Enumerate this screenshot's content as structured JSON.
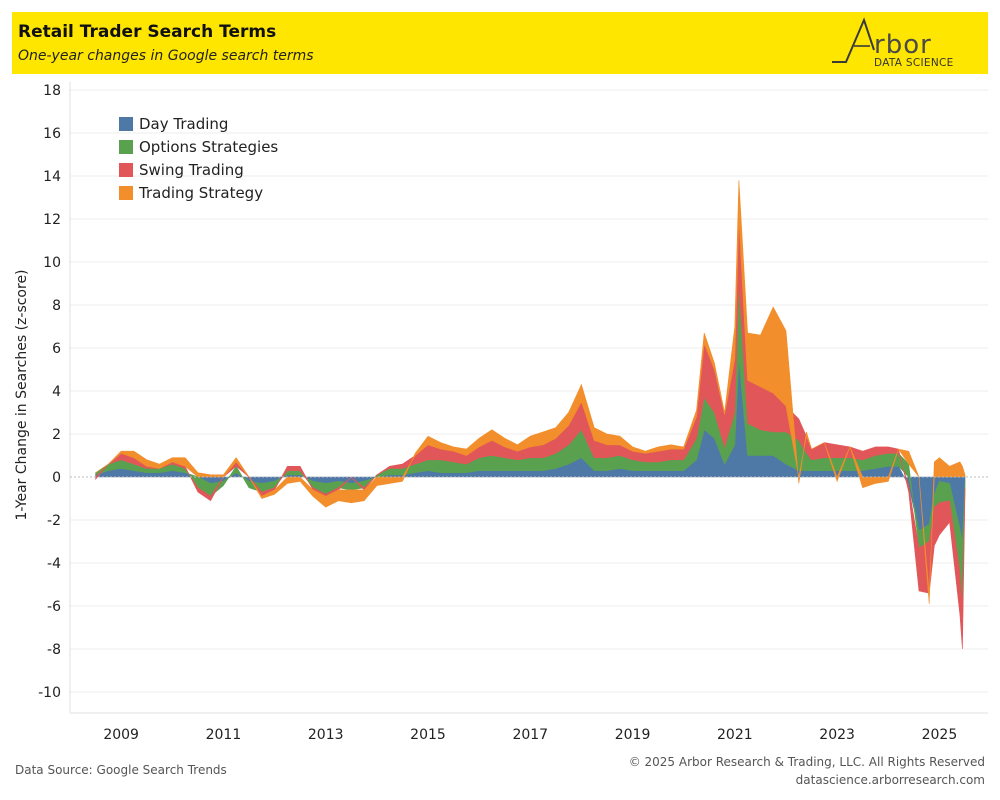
{
  "header": {
    "title": "Retail Trader Search Terms",
    "subtitle": "One-year changes in Google search terms",
    "logo_word": "rbor",
    "logo_sub": "DATA SCIENCE",
    "background_color": "#ffe600"
  },
  "footer": {
    "source": "Data Source: Google Search Trends",
    "copyright": "© 2025 Arbor Research & Trading, LLC. All Rights Reserved",
    "website": "datascience.arborresearch.com"
  },
  "chart_data": {
    "type": "area",
    "stacked": true,
    "ylabel": "1-Year Change in Searches (z-score)",
    "ylim": [
      -11,
      18
    ],
    "yticks": [
      -10,
      -8,
      -6,
      -4,
      -2,
      0,
      2,
      4,
      6,
      8,
      10,
      12,
      14,
      16,
      18
    ],
    "xlim": [
      2008.0,
      2025.95
    ],
    "xticks": [
      2009,
      2011,
      2013,
      2015,
      2017,
      2019,
      2021,
      2023,
      2025
    ],
    "grid": true,
    "legend_position": "top-left",
    "x": [
      2008.5,
      2008.75,
      2009.0,
      2009.25,
      2009.5,
      2009.75,
      2010.0,
      2010.25,
      2010.5,
      2010.75,
      2011.0,
      2011.25,
      2011.5,
      2011.75,
      2012.0,
      2012.25,
      2012.5,
      2012.75,
      2013.0,
      2013.25,
      2013.5,
      2013.75,
      2014.0,
      2014.25,
      2014.5,
      2014.75,
      2015.0,
      2015.25,
      2015.5,
      2015.75,
      2016.0,
      2016.25,
      2016.5,
      2016.75,
      2017.0,
      2017.25,
      2017.5,
      2017.75,
      2018.0,
      2018.25,
      2018.5,
      2018.75,
      2019.0,
      2019.25,
      2019.5,
      2019.75,
      2020.0,
      2020.25,
      2020.4,
      2020.6,
      2020.8,
      2021.0,
      2021.08,
      2021.25,
      2021.5,
      2021.75,
      2022.0,
      2022.25,
      2022.4,
      2022.5,
      2022.75,
      2023.0,
      2023.25,
      2023.5,
      2023.75,
      2024.0,
      2024.2,
      2024.4,
      2024.6,
      2024.8,
      2024.9,
      2025.0,
      2025.2,
      2025.4,
      2025.45,
      2025.5
    ],
    "series": [
      {
        "name": "Day Trading",
        "color": "#4e79a7",
        "values": [
          0.1,
          0.3,
          0.4,
          0.3,
          0.2,
          0.2,
          0.3,
          0.2,
          0.0,
          -0.3,
          -0.2,
          0.2,
          -0.2,
          -0.3,
          -0.2,
          0.1,
          0.1,
          -0.2,
          -0.3,
          -0.2,
          -0.3,
          -0.2,
          0.0,
          0.1,
          0.1,
          0.2,
          0.3,
          0.2,
          0.2,
          0.2,
          0.3,
          0.3,
          0.3,
          0.3,
          0.3,
          0.3,
          0.4,
          0.6,
          0.9,
          0.3,
          0.3,
          0.4,
          0.3,
          0.3,
          0.3,
          0.3,
          0.3,
          0.8,
          2.2,
          1.8,
          0.6,
          1.5,
          5.5,
          1.0,
          1.0,
          1.0,
          0.6,
          0.3,
          0.3,
          0.3,
          0.3,
          0.3,
          0.3,
          0.3,
          0.4,
          0.5,
          0.5,
          -0.4,
          -2.5,
          -2.2,
          -0.8,
          -0.2,
          -0.3,
          -2.4,
          -3.0,
          -0.2
        ]
      },
      {
        "name": "Options Strategies",
        "color": "#59a14f",
        "values": [
          0.1,
          0.3,
          0.4,
          0.3,
          0.2,
          0.2,
          0.3,
          0.2,
          -0.5,
          -0.6,
          -0.2,
          0.3,
          -0.3,
          -0.4,
          -0.3,
          0.2,
          0.2,
          -0.3,
          -0.5,
          -0.3,
          -0.3,
          -0.3,
          0.1,
          0.3,
          0.3,
          0.4,
          0.5,
          0.6,
          0.5,
          0.4,
          0.6,
          0.7,
          0.6,
          0.5,
          0.6,
          0.6,
          0.7,
          0.9,
          1.3,
          0.6,
          0.6,
          0.6,
          0.5,
          0.4,
          0.4,
          0.5,
          0.5,
          1.0,
          1.5,
          1.2,
          0.8,
          1.5,
          3.5,
          1.5,
          1.2,
          1.1,
          1.5,
          1.4,
          0.8,
          0.5,
          0.6,
          0.6,
          0.6,
          0.5,
          0.6,
          0.6,
          0.6,
          0.6,
          -0.8,
          -0.8,
          -0.6,
          -1.0,
          -0.8,
          -2.0,
          -3.0,
          -0.3
        ]
      },
      {
        "name": "Swing Trading",
        "color": "#e15759",
        "values": [
          -0.1,
          0.0,
          0.3,
          0.3,
          0.1,
          0.0,
          0.1,
          0.1,
          -0.2,
          -0.2,
          0.0,
          0.2,
          0.0,
          -0.2,
          -0.1,
          0.2,
          0.2,
          -0.1,
          -0.1,
          -0.1,
          0.0,
          -0.1,
          0.0,
          0.1,
          0.2,
          0.4,
          0.7,
          0.5,
          0.5,
          0.4,
          0.5,
          0.7,
          0.5,
          0.4,
          0.5,
          0.6,
          0.7,
          0.9,
          1.3,
          0.8,
          0.6,
          0.5,
          0.4,
          0.4,
          0.5,
          0.5,
          0.5,
          1.0,
          2.5,
          2.0,
          1.5,
          2.5,
          3.0,
          2.0,
          2.0,
          1.8,
          1.2,
          1.0,
          0.8,
          0.5,
          0.7,
          0.6,
          0.5,
          0.4,
          0.4,
          0.3,
          0.2,
          -0.3,
          -2.0,
          -2.4,
          -1.8,
          -1.5,
          -1.0,
          -2.0,
          -2.0,
          -0.3
        ]
      },
      {
        "name": "Trading Strategy",
        "color": "#f28e2b",
        "values": [
          0.0,
          0.0,
          0.1,
          0.3,
          0.3,
          0.2,
          0.2,
          0.4,
          0.2,
          0.1,
          0.1,
          0.2,
          0.0,
          -0.1,
          -0.2,
          -0.3,
          -0.2,
          -0.3,
          -0.5,
          -0.5,
          -0.6,
          -0.5,
          -0.4,
          -0.3,
          -0.2,
          0.1,
          0.4,
          0.3,
          0.2,
          0.3,
          0.4,
          0.5,
          0.4,
          0.3,
          0.5,
          0.6,
          0.5,
          0.6,
          0.8,
          0.6,
          0.5,
          0.4,
          0.2,
          0.1,
          0.2,
          0.2,
          0.1,
          0.3,
          0.5,
          0.3,
          0.1,
          1.5,
          1.8,
          2.2,
          2.4,
          4.0,
          3.5,
          -0.3,
          0.2,
          0.0,
          0.0,
          -0.2,
          0.0,
          -0.5,
          -0.3,
          -0.2,
          0.0,
          0.6,
          0.0,
          -0.5,
          0.7,
          0.9,
          0.5,
          0.7,
          0.5,
          0.1
        ]
      }
    ]
  }
}
